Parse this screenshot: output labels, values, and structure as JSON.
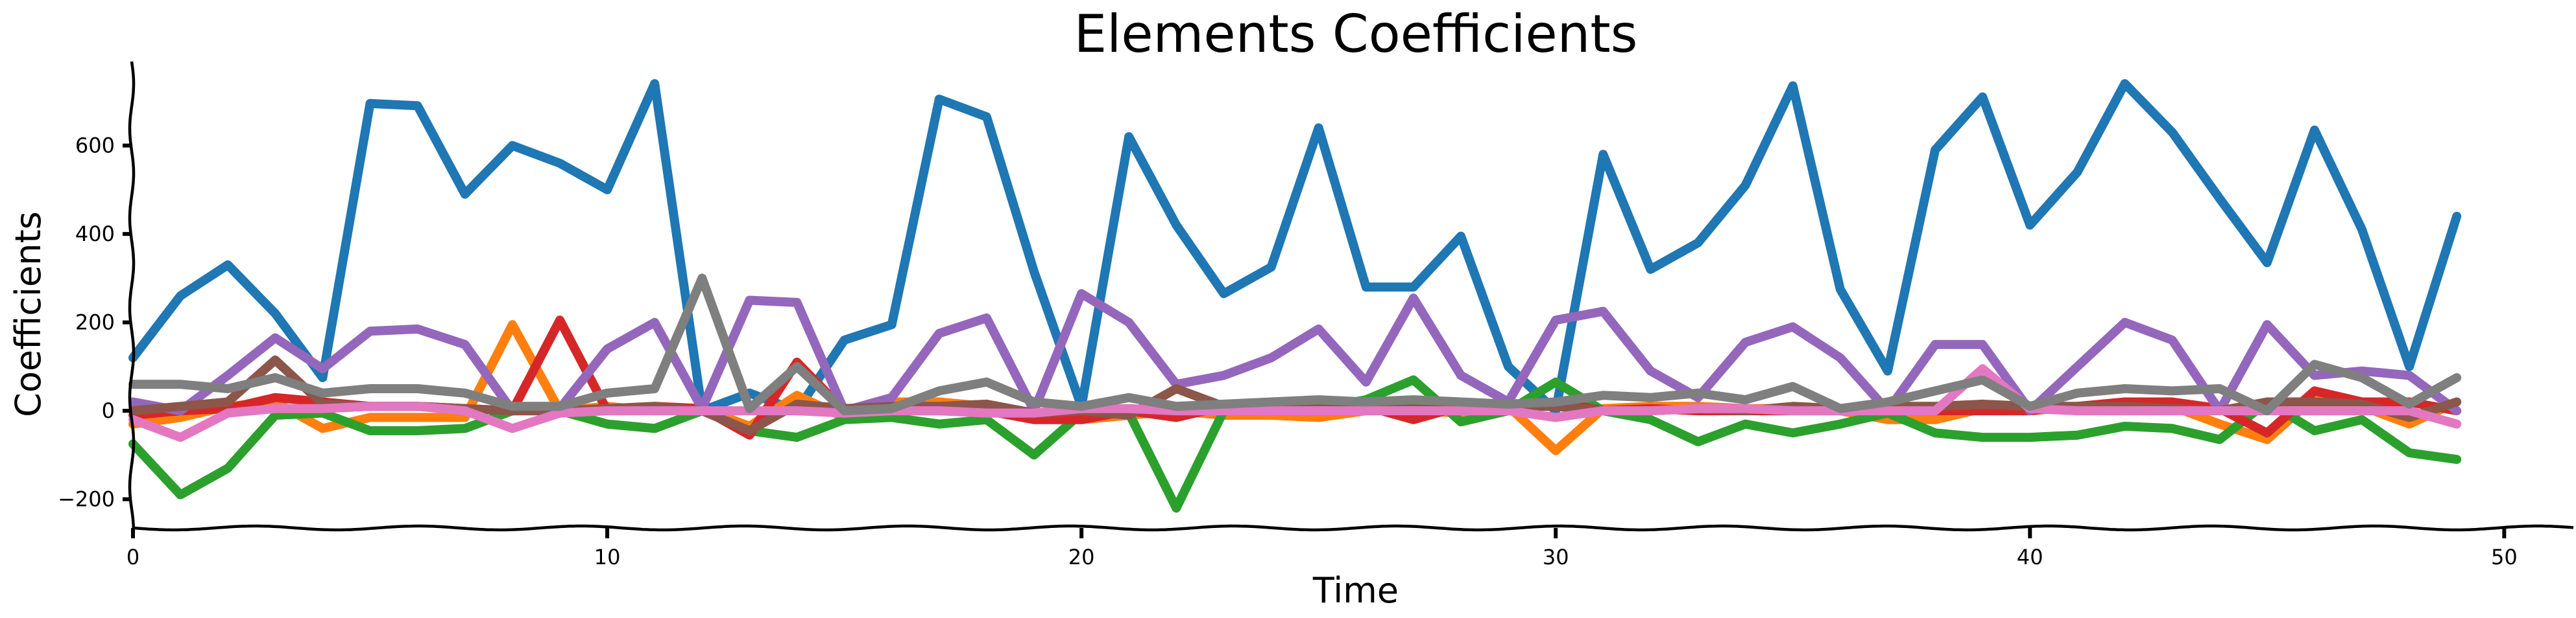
{
  "chart_data": {
    "type": "line",
    "title": "Elements Coefficients",
    "xlabel": "Time",
    "ylabel": "Coefficients",
    "xlim": [
      0,
      51.5
    ],
    "ylim": [
      -265,
      790
    ],
    "xticks": [
      0,
      10,
      20,
      30,
      40,
      50
    ],
    "yticks": [
      -200,
      0,
      200,
      400,
      600
    ],
    "ytick_labels": [
      "−200",
      "0",
      "200",
      "400",
      "600"
    ],
    "grid": false,
    "legend": "none",
    "x": [
      0,
      1,
      2,
      3,
      4,
      5,
      6,
      7,
      8,
      9,
      10,
      11,
      12,
      13,
      14,
      15,
      16,
      17,
      18,
      19,
      20,
      21,
      22,
      23,
      24,
      25,
      26,
      27,
      28,
      29,
      30,
      31,
      32,
      33,
      34,
      35,
      36,
      37,
      38,
      39,
      40,
      41,
      42,
      43,
      44,
      45,
      46,
      47,
      48,
      49
    ],
    "series": [
      {
        "color": "#1f77b4",
        "values": [
          120,
          260,
          330,
          220,
          75,
          695,
          690,
          490,
          600,
          560,
          500,
          740,
          0,
          40,
          0,
          160,
          195,
          705,
          665,
          315,
          10,
          620,
          420,
          265,
          325,
          640,
          280,
          280,
          395,
          100,
          0,
          580,
          320,
          380,
          510,
          735,
          275,
          90,
          590,
          710,
          420,
          540,
          740,
          630,
          480,
          335,
          635,
          410,
          100,
          440
        ]
      },
      {
        "color": "#ff7f0e",
        "values": [
          -30,
          -15,
          10,
          20,
          -40,
          -15,
          -15,
          -15,
          195,
          0,
          10,
          0,
          5,
          -35,
          35,
          -15,
          20,
          20,
          10,
          -10,
          -20,
          -10,
          0,
          -10,
          -10,
          -15,
          0,
          0,
          -5,
          10,
          -90,
          5,
          10,
          10,
          5,
          5,
          0,
          -20,
          -20,
          5,
          0,
          10,
          0,
          10,
          -30,
          -65,
          30,
          10,
          -30,
          20
        ]
      },
      {
        "color": "#2ca02c",
        "values": [
          -75,
          -190,
          -130,
          -10,
          -5,
          -45,
          -45,
          -40,
          0,
          0,
          -30,
          -40,
          0,
          -45,
          -60,
          -20,
          -15,
          -30,
          -20,
          -100,
          -5,
          -5,
          -220,
          0,
          0,
          5,
          25,
          70,
          -25,
          0,
          65,
          0,
          -20,
          -70,
          -30,
          -50,
          -30,
          -5,
          -50,
          -60,
          -60,
          -55,
          -35,
          -40,
          -65,
          20,
          -45,
          -20,
          -95,
          -110
        ]
      },
      {
        "color": "#d62728",
        "values": [
          -10,
          0,
          5,
          30,
          20,
          10,
          10,
          5,
          0,
          205,
          0,
          10,
          5,
          -55,
          110,
          0,
          0,
          0,
          0,
          -20,
          -20,
          0,
          -15,
          10,
          10,
          10,
          10,
          -20,
          10,
          10,
          20,
          0,
          5,
          0,
          0,
          0,
          0,
          10,
          0,
          0,
          0,
          10,
          20,
          20,
          5,
          -50,
          45,
          20,
          20,
          0
        ]
      },
      {
        "color": "#9467bd",
        "values": [
          20,
          0,
          80,
          165,
          95,
          180,
          185,
          150,
          0,
          5,
          140,
          200,
          5,
          250,
          245,
          0,
          30,
          175,
          210,
          0,
          265,
          200,
          60,
          80,
          120,
          185,
          65,
          255,
          80,
          20,
          205,
          225,
          90,
          30,
          155,
          190,
          120,
          0,
          150,
          150,
          0,
          100,
          200,
          160,
          0,
          195,
          80,
          90,
          80,
          0
        ]
      },
      {
        "color": "#8c564b",
        "values": [
          0,
          10,
          20,
          115,
          15,
          10,
          10,
          5,
          0,
          0,
          5,
          10,
          0,
          -45,
          15,
          5,
          10,
          10,
          15,
          -5,
          0,
          -10,
          50,
          10,
          10,
          15,
          15,
          15,
          10,
          10,
          10,
          0,
          0,
          5,
          0,
          10,
          5,
          10,
          10,
          15,
          10,
          10,
          10,
          5,
          0,
          20,
          20,
          15,
          -15,
          20
        ]
      },
      {
        "color": "#e377c2",
        "values": [
          -20,
          -60,
          -5,
          5,
          5,
          10,
          10,
          0,
          -40,
          -5,
          0,
          0,
          0,
          0,
          0,
          -5,
          0,
          0,
          -5,
          -5,
          5,
          5,
          0,
          0,
          0,
          0,
          0,
          0,
          0,
          0,
          -15,
          0,
          0,
          5,
          5,
          0,
          0,
          0,
          0,
          95,
          5,
          0,
          0,
          0,
          0,
          0,
          0,
          0,
          0,
          -30
        ]
      },
      {
        "color": "#7f7f7f",
        "values": [
          60,
          60,
          50,
          75,
          40,
          50,
          50,
          40,
          10,
          10,
          40,
          50,
          300,
          5,
          100,
          0,
          5,
          45,
          65,
          20,
          10,
          30,
          10,
          15,
          20,
          25,
          20,
          25,
          20,
          15,
          20,
          35,
          30,
          40,
          25,
          55,
          5,
          20,
          45,
          70,
          10,
          40,
          50,
          45,
          50,
          0,
          105,
          75,
          15,
          75
        ]
      }
    ]
  }
}
